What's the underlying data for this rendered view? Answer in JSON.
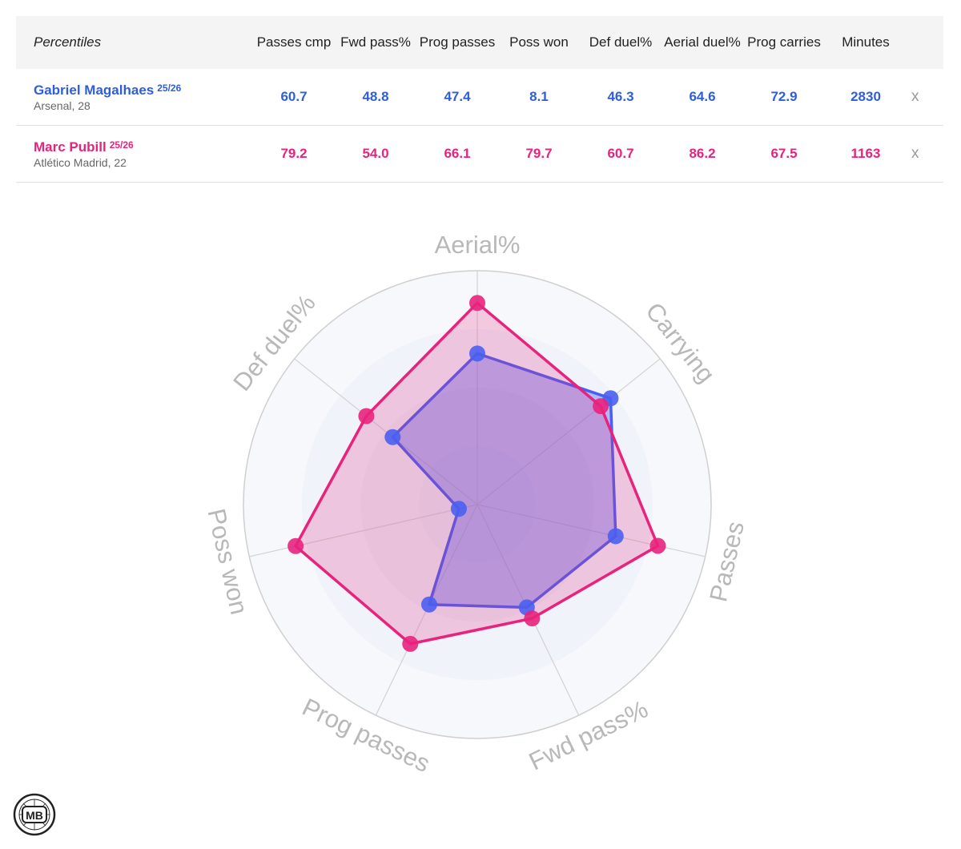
{
  "table": {
    "header_label": "Percentiles",
    "columns": [
      "Passes cmp",
      "Fwd pass%",
      "Prog passes",
      "Poss won",
      "Def duel%",
      "Aerial duel%",
      "Prog carries",
      "Minutes"
    ],
    "rows": [
      {
        "name": "Gabriel Magalhaes",
        "season": "25/26",
        "meta": "Arsenal, 28",
        "values": [
          "60.7",
          "48.8",
          "47.4",
          "8.1",
          "46.3",
          "64.6",
          "72.9",
          "2830"
        ],
        "remove_label": "x",
        "color": "#2f5ed8"
      },
      {
        "name": "Marc Pubill",
        "season": "25/26",
        "meta": "Atlético Madrid, 22",
        "values": [
          "79.2",
          "54.0",
          "66.1",
          "79.7",
          "60.7",
          "86.2",
          "67.5",
          "1163"
        ],
        "remove_label": "x",
        "color": "#e8237d"
      }
    ]
  },
  "chart_data": {
    "type": "radar",
    "axes": [
      "Aerial%",
      "Carrying",
      "Passes",
      "Fwd pass%",
      "Prog passes",
      "Poss won",
      "Def duel%"
    ],
    "range": [
      0,
      100
    ],
    "rings": 4,
    "series": [
      {
        "name": "Gabriel Magalhaes",
        "color": "#4a5ff0",
        "values": [
          64.6,
          72.9,
          60.7,
          48.8,
          47.4,
          8.1,
          46.3
        ]
      },
      {
        "name": "Marc Pubill",
        "color": "#e8237d",
        "values": [
          86.2,
          67.5,
          79.2,
          54.0,
          66.1,
          79.7,
          60.7
        ]
      }
    ]
  },
  "logo": {
    "text": "MB"
  }
}
